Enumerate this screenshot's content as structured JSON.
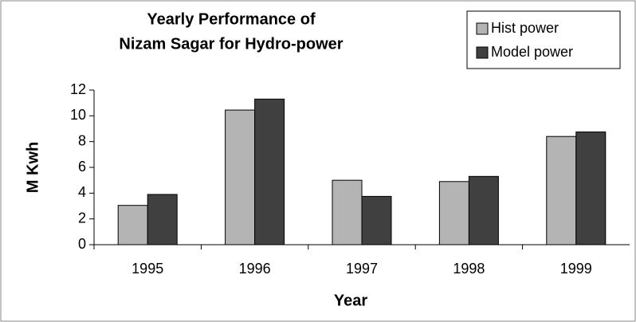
{
  "chart_data": {
    "type": "bar",
    "title": "Yearly Performance of",
    "subtitle": "Nizam Sagar for Hydro-power",
    "x_label": "Year",
    "y_label": "M Kwh",
    "categories": [
      "1995",
      "1996",
      "1997",
      "1998",
      "1999"
    ],
    "series": [
      {
        "name": "Hist power",
        "color": "#b4b4b4",
        "values": [
          3.05,
          10.45,
          5.0,
          4.9,
          8.4
        ]
      },
      {
        "name": "Model power",
        "color": "#404040",
        "values": [
          3.9,
          11.3,
          3.75,
          5.3,
          8.75
        ]
      }
    ],
    "ylim": [
      0,
      12
    ],
    "yticks": [
      0,
      2,
      4,
      6,
      8,
      10,
      12
    ]
  }
}
